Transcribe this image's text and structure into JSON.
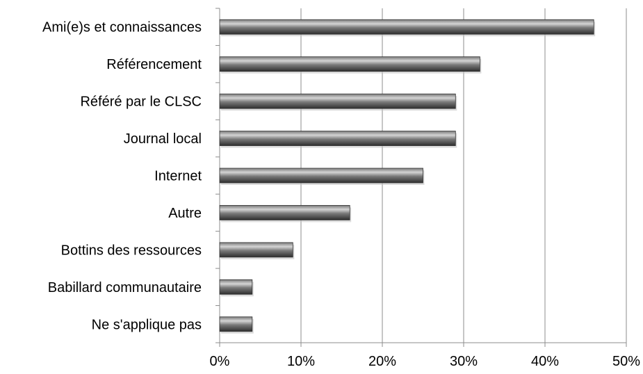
{
  "chart_data": {
    "type": "bar",
    "orientation": "horizontal",
    "categories": [
      "Ami(e)s et connaissances",
      "Référencement",
      "Référé par le CLSC",
      "Journal local",
      "Internet",
      "Autre",
      "Bottins des ressources",
      "Babillard communautaire",
      "Ne s'applique pas"
    ],
    "values": [
      46,
      32,
      29,
      29,
      25,
      16,
      9,
      4,
      4
    ],
    "x_ticks": [
      0,
      10,
      20,
      30,
      40,
      50
    ],
    "x_tick_labels": [
      "0%",
      "10%",
      "20%",
      "30%",
      "40%",
      "50%"
    ],
    "xlim": [
      0,
      50
    ],
    "title": "",
    "xlabel": "",
    "ylabel": "",
    "grid": "vertical",
    "legend": "none",
    "colors": {
      "bar_dark": "#2e2e2e",
      "bar_mid": "#7a7a7a",
      "bar_light": "#d4d4d4",
      "grid": "#8c8c8c",
      "axis": "#8c8c8c"
    }
  }
}
